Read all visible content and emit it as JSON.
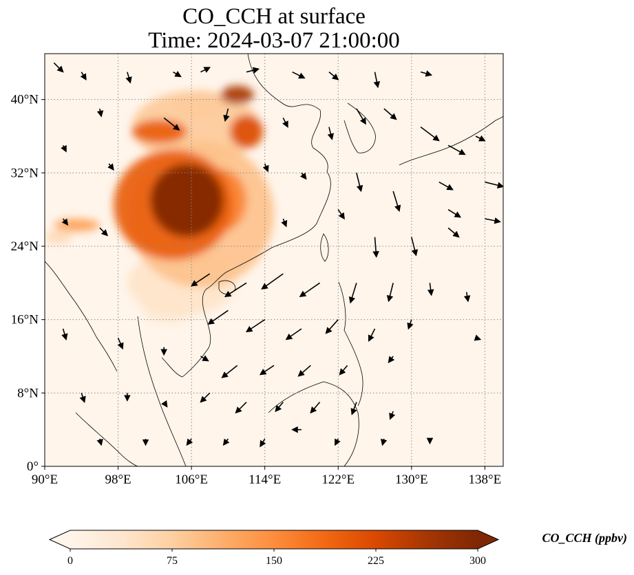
{
  "title": {
    "line1": "CO_CCH at surface",
    "line2": "Time: 2024-03-07 21:00:00"
  },
  "map": {
    "lon_range": [
      90,
      140
    ],
    "lat_range": [
      0,
      45
    ],
    "xticks": [
      {
        "value": 90,
        "label": "90°E"
      },
      {
        "value": 98,
        "label": "98°E"
      },
      {
        "value": 106,
        "label": "106°E"
      },
      {
        "value": 114,
        "label": "114°E"
      },
      {
        "value": 122,
        "label": "122°E"
      },
      {
        "value": 130,
        "label": "130°E"
      },
      {
        "value": 138,
        "label": "138°E"
      }
    ],
    "yticks": [
      {
        "value": 0,
        "label": "0°"
      },
      {
        "value": 8,
        "label": "8°N"
      },
      {
        "value": 16,
        "label": "16°N"
      },
      {
        "value": 24,
        "label": "24°N"
      },
      {
        "value": 32,
        "label": "32°N"
      },
      {
        "value": 40,
        "label": "40°N"
      }
    ],
    "gridlines": true,
    "background_color": "#fff5eb",
    "plumes": [
      {
        "lon": 105.5,
        "lat": 29.0,
        "rlon": 4.0,
        "rlat": 4.0,
        "value": 300
      },
      {
        "lon": 104.0,
        "lat": 28.5,
        "rlon": 6.5,
        "rlat": 6.0,
        "value": 200
      },
      {
        "lon": 109.0,
        "lat": 29.0,
        "rlon": 3.0,
        "rlat": 3.5,
        "value": 160
      },
      {
        "lon": 107.0,
        "lat": 27.5,
        "rlon": 8.0,
        "rlat": 8.0,
        "value": 90
      },
      {
        "lon": 105.0,
        "lat": 20.0,
        "rlon": 6.0,
        "rlat": 3.5,
        "value": 40
      },
      {
        "lon": 111.0,
        "lat": 40.5,
        "rlon": 1.8,
        "rlat": 1.0,
        "value": 260
      },
      {
        "lon": 112.0,
        "lat": 36.5,
        "rlon": 1.8,
        "rlat": 1.8,
        "value": 220
      },
      {
        "lon": 102.5,
        "lat": 36.5,
        "rlon": 3.0,
        "rlat": 1.3,
        "value": 200
      },
      {
        "lon": 106.5,
        "lat": 37.0,
        "rlon": 7.0,
        "rlat": 4.0,
        "value": 80
      },
      {
        "lon": 107.0,
        "lat": 39.5,
        "rlon": 3.0,
        "rlat": 1.5,
        "value": 70
      },
      {
        "lon": 93.5,
        "lat": 26.3,
        "rlon": 2.5,
        "rlat": 0.7,
        "value": 130
      },
      {
        "lon": 91.5,
        "lat": 25.0,
        "rlon": 1.5,
        "rlat": 0.7,
        "value": 60
      },
      {
        "lon": 103.5,
        "lat": 17.5,
        "rlon": 3.0,
        "rlat": 2.0,
        "value": 30
      }
    ],
    "wind_vectors": [
      [
        91,
        44,
        0.6,
        -0.6
      ],
      [
        94,
        43,
        0.3,
        -0.5
      ],
      [
        99,
        43,
        0.2,
        -0.7
      ],
      [
        104,
        43,
        0.5,
        -0.3
      ],
      [
        107,
        43,
        0.6,
        0.3
      ],
      [
        112,
        43,
        0.8,
        0.2
      ],
      [
        117,
        43,
        0.8,
        -0.4
      ],
      [
        121,
        43,
        0.6,
        -0.5
      ],
      [
        126,
        43,
        0.2,
        -1.0
      ],
      [
        131,
        43,
        0.7,
        -0.2
      ],
      [
        96,
        39,
        0.1,
        -0.5
      ],
      [
        103,
        38,
        1.0,
        -0.8
      ],
      [
        110,
        39,
        -0.2,
        -0.8
      ],
      [
        116,
        38,
        0.3,
        -0.6
      ],
      [
        121,
        37,
        0.2,
        -0.8
      ],
      [
        124,
        39,
        0.6,
        -1.0
      ],
      [
        127,
        39,
        0.8,
        -0.7
      ],
      [
        131,
        37,
        1.2,
        -0.9
      ],
      [
        134,
        35,
        1.1,
        -0.6
      ],
      [
        137,
        36,
        0.6,
        -0.3
      ],
      [
        92,
        35,
        0.2,
        -0.4
      ],
      [
        97,
        33,
        0.3,
        -0.4
      ],
      [
        114,
        33,
        0.2,
        -0.5
      ],
      [
        118,
        32,
        0.3,
        -0.4
      ],
      [
        124,
        32,
        0.3,
        -1.2
      ],
      [
        128,
        30,
        0.4,
        -1.3
      ],
      [
        133,
        31,
        0.9,
        -0.5
      ],
      [
        138,
        31,
        1.2,
        -0.3
      ],
      [
        134,
        28,
        0.8,
        -0.5
      ],
      [
        92,
        27,
        0.3,
        -0.4
      ],
      [
        96,
        26,
        0.5,
        -0.5
      ],
      [
        116,
        27,
        0.2,
        -0.5
      ],
      [
        122,
        28,
        0.4,
        -0.6
      ],
      [
        126,
        25,
        0.1,
        -1.3
      ],
      [
        130,
        25,
        0.3,
        -1.2
      ],
      [
        134,
        26,
        0.7,
        -0.6
      ],
      [
        138,
        27,
        1.0,
        -0.2
      ],
      [
        108,
        21,
        -1.2,
        -0.8
      ],
      [
        112,
        20,
        -1.4,
        -0.9
      ],
      [
        116,
        21,
        -1.4,
        -1.0
      ],
      [
        120,
        20,
        -1.3,
        -0.9
      ],
      [
        124,
        20,
        -0.4,
        -1.3
      ],
      [
        128,
        20,
        -0.3,
        -1.2
      ],
      [
        132,
        20,
        0.1,
        -0.8
      ],
      [
        136,
        19,
        0.1,
        -0.6
      ],
      [
        110,
        17,
        -1.3,
        -0.9
      ],
      [
        114,
        16,
        -1.2,
        -0.8
      ],
      [
        118,
        15,
        -1.0,
        -0.7
      ],
      [
        122,
        16,
        -0.8,
        -0.9
      ],
      [
        126,
        15,
        -0.4,
        -0.8
      ],
      [
        130,
        16,
        -0.2,
        -0.6
      ],
      [
        137,
        14,
        0.3,
        -0.1
      ],
      [
        92,
        15,
        0.2,
        -0.7
      ],
      [
        98,
        14,
        0.3,
        -0.7
      ],
      [
        103,
        13,
        0.0,
        -0.5
      ],
      [
        107,
        12,
        0.5,
        -0.3
      ],
      [
        111,
        11,
        -1.0,
        -0.8
      ],
      [
        115,
        11,
        -0.9,
        -0.6
      ],
      [
        119,
        11,
        -0.8,
        -0.7
      ],
      [
        123,
        11,
        -0.5,
        -0.6
      ],
      [
        128,
        12,
        -0.3,
        -0.4
      ],
      [
        94,
        8,
        0.2,
        -0.6
      ],
      [
        99,
        8,
        0.0,
        -0.5
      ],
      [
        103,
        7,
        0.2,
        -0.3
      ],
      [
        108,
        8,
        -0.6,
        -0.6
      ],
      [
        112,
        7,
        -0.7,
        -0.7
      ],
      [
        116,
        7,
        -0.5,
        -0.6
      ],
      [
        120,
        7,
        -0.6,
        -0.7
      ],
      [
        124,
        7,
        -0.3,
        -0.8
      ],
      [
        128,
        6,
        -0.2,
        -0.5
      ],
      [
        96,
        3,
        0.1,
        -0.4
      ],
      [
        101,
        3,
        0.0,
        -0.4
      ],
      [
        106,
        3,
        -0.3,
        -0.4
      ],
      [
        110,
        3,
        -0.3,
        -0.4
      ],
      [
        114,
        3,
        -0.3,
        -0.5
      ],
      [
        118,
        4,
        -0.6,
        0.0
      ],
      [
        122,
        3,
        -0.2,
        -0.4
      ],
      [
        127,
        3,
        -0.1,
        -0.4
      ],
      [
        132,
        3,
        0.0,
        -0.3
      ]
    ]
  },
  "colorbar": {
    "label": "CO_CCH (ppbv)",
    "min": 0,
    "max": 300,
    "ticks": [
      {
        "value": 0,
        "label": "0"
      },
      {
        "value": 75,
        "label": "75"
      },
      {
        "value": 150,
        "label": "150"
      },
      {
        "value": 225,
        "label": "225"
      },
      {
        "value": 300,
        "label": "300"
      }
    ],
    "colors": [
      "#fff5eb",
      "#fee6ce",
      "#fdd0a2",
      "#fdae6b",
      "#fd8d3c",
      "#f16913",
      "#d94801",
      "#a63603",
      "#7f2704"
    ],
    "extend": "both"
  },
  "chart_data": {
    "type": "heatmap",
    "title": "CO_CCH at surface\nTime: 2024-03-07 21:00:00",
    "xlabel": "",
    "ylabel": "",
    "xlim": [
      90,
      140
    ],
    "ylim": [
      0,
      45
    ],
    "xticks": [
      "90°E",
      "98°E",
      "106°E",
      "114°E",
      "122°E",
      "130°E",
      "138°E"
    ],
    "yticks": [
      "0°",
      "8°N",
      "16°N",
      "24°N",
      "32°N",
      "40°N"
    ],
    "colorbar": {
      "label": "CO_CCH (ppbv)",
      "range": [
        0,
        300
      ],
      "ticks": [
        0,
        75,
        150,
        225,
        300
      ]
    }
  }
}
